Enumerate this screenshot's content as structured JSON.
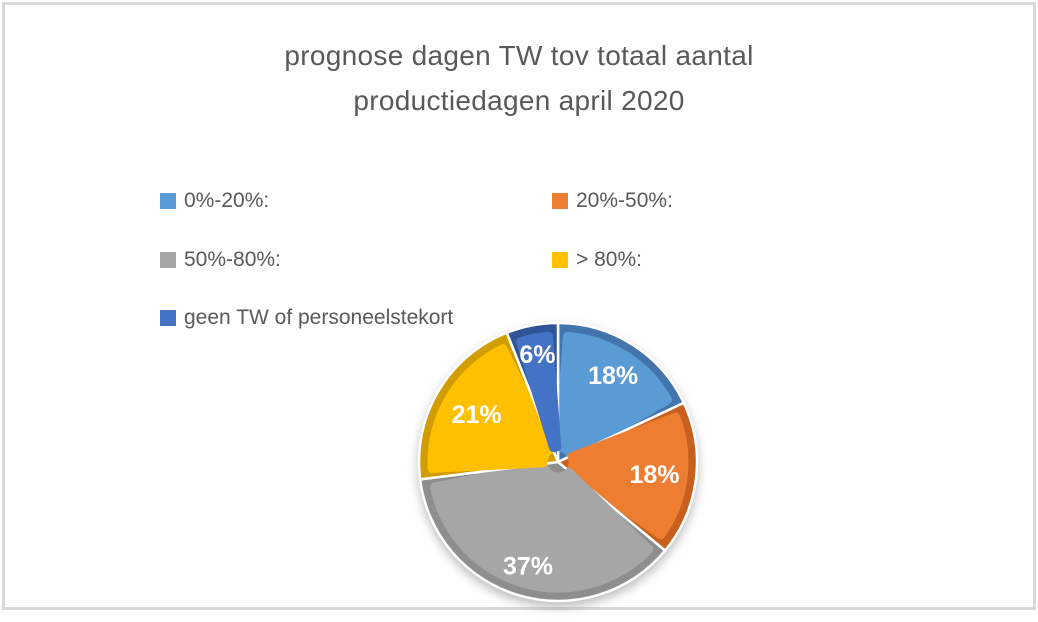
{
  "frame": {
    "border_color": "#d9d9d9",
    "background_color": "#ffffff"
  },
  "chart_data": {
    "type": "pie",
    "title": "prognose dagen TW tov totaal aantal productiedagen april 2020",
    "title_color": "#595959",
    "legend_position": "top-left, two columns, square markers",
    "legend_text_color": "#595959",
    "data_label_color": "#ffffff",
    "start_angle_deg": 0,
    "direction": "clockwise",
    "categories": [
      "0%-20%:",
      "20%-50%:",
      "50%-80%:",
      "> 80%:",
      "geen TW of personeelstekort"
    ],
    "values": [
      18,
      18,
      37,
      21,
      6
    ],
    "data_labels": [
      "18%",
      "18%",
      "37%",
      "21%",
      "6%"
    ],
    "colors": [
      "#5b9bd5",
      "#ed7d31",
      "#a6a6a6",
      "#ffc000",
      "#4472c4"
    ],
    "edge_colors": [
      "#4374ab",
      "#c6601c",
      "#8e8e8e",
      "#d29d00",
      "#2f5597"
    ]
  }
}
